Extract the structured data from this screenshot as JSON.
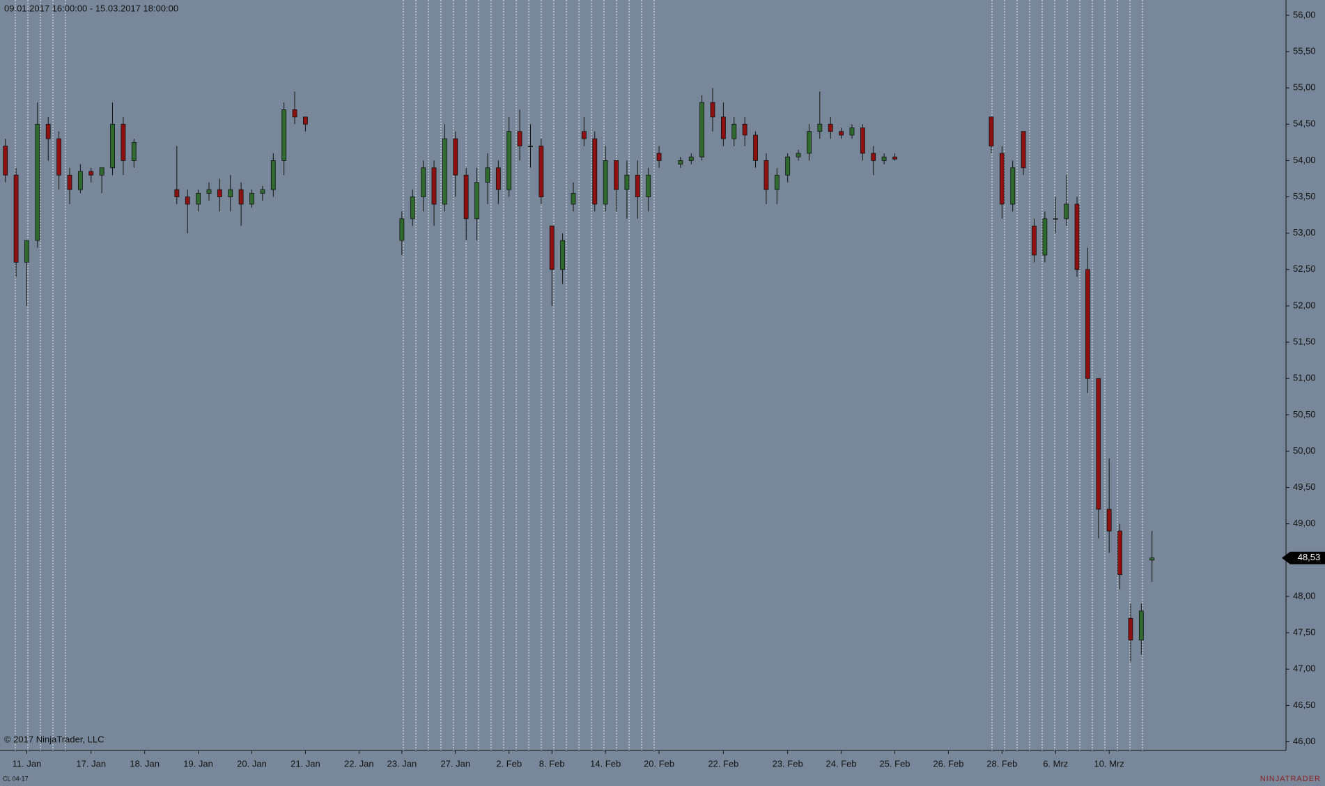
{
  "chart_data": {
    "type": "candlestick",
    "subtitle": "09.01.2017 16:00:00 - 15.03.2017 18:00:00",
    "copyright": "© 2017 NinjaTrader, LLC",
    "instrument": "CL 04-17",
    "brand": "NINJATRADER",
    "up_color": "#2f6b2f",
    "down_color": "#8e1010",
    "background": "#78889a",
    "ylim": [
      45.88,
      56.21
    ],
    "yticks": [
      {
        "value": 46,
        "label": "46,00"
      },
      {
        "value": 46.5,
        "label": "46,50"
      },
      {
        "value": 47,
        "label": "47,00"
      },
      {
        "value": 47.5,
        "label": "47,50"
      },
      {
        "value": 48,
        "label": "48,00"
      },
      {
        "value": 48.5,
        "label": "48,50"
      },
      {
        "value": 49,
        "label": "49,00"
      },
      {
        "value": 49.5,
        "label": "49,50"
      },
      {
        "value": 50,
        "label": "50,00"
      },
      {
        "value": 50.5,
        "label": "50,50"
      },
      {
        "value": 51,
        "label": "51,00"
      },
      {
        "value": 51.5,
        "label": "51,50"
      },
      {
        "value": 52,
        "label": "52,00"
      },
      {
        "value": 52.5,
        "label": "52,50"
      },
      {
        "value": 53,
        "label": "53,00"
      },
      {
        "value": 53.5,
        "label": "53,50"
      },
      {
        "value": 54,
        "label": "54,00"
      },
      {
        "value": 54.5,
        "label": "54,50"
      },
      {
        "value": 55,
        "label": "55,00"
      },
      {
        "value": 55.5,
        "label": "55,50"
      },
      {
        "value": 56,
        "label": "56,00"
      }
    ],
    "last_price": {
      "value": 48.53,
      "label": "48,53"
    },
    "categories": [
      null,
      null,
      "11. Jan",
      null,
      null,
      null,
      null,
      null,
      "17. Jan",
      null,
      null,
      null,
      null,
      "18. Jan",
      null,
      null,
      null,
      null,
      "19. Jan",
      null,
      null,
      null,
      null,
      "20. Jan",
      null,
      null,
      null,
      null,
      "21. Jan",
      null,
      null,
      null,
      null,
      "22. Jan",
      null,
      null,
      null,
      "23. Jan",
      null,
      null,
      null,
      null,
      "27. Jan",
      null,
      null,
      null,
      null,
      "2. Feb",
      null,
      null,
      null,
      "8. Feb",
      null,
      null,
      null,
      null,
      "14. Feb",
      null,
      null,
      null,
      null,
      "20. Feb",
      null,
      null,
      null,
      null,
      null,
      "22. Feb",
      null,
      null,
      null,
      null,
      null,
      "23. Feb",
      null,
      null,
      null,
      null,
      "24. Feb",
      null,
      null,
      null,
      null,
      "25. Feb",
      null,
      null,
      null,
      null,
      "26. Feb",
      null,
      null,
      null,
      null,
      "28. Feb",
      null,
      null,
      null,
      null,
      "6. Mrz",
      null,
      null,
      null,
      null,
      "10. Mrz",
      null,
      null,
      null,
      null,
      null,
      null,
      null,
      null,
      null,
      null,
      null,
      null,
      null,
      null,
      null,
      null
    ],
    "open": [
      54.2,
      53.8,
      52.6,
      52.9,
      54.5,
      54.3,
      53.8,
      53.6,
      53.85,
      53.8,
      53.9,
      54.5,
      54.0,
      null,
      null,
      null,
      53.6,
      53.5,
      53.4,
      53.55,
      53.6,
      53.5,
      53.6,
      53.4,
      53.55,
      53.6,
      54.0,
      54.7,
      54.6,
      null,
      null,
      null,
      null,
      null,
      null,
      null,
      null,
      52.9,
      53.2,
      53.5,
      53.9,
      53.4,
      54.3,
      53.8,
      53.2,
      53.7,
      53.9,
      53.6,
      54.4,
      54.2,
      54.2,
      53.1,
      52.5,
      53.4,
      54.4,
      54.3,
      53.4,
      54.0,
      53.6,
      53.8,
      53.5,
      54.1,
      null,
      53.95,
      54.0,
      54.05,
      54.8,
      54.6,
      54.3,
      54.5,
      54.35,
      54.0,
      53.6,
      53.8,
      54.05,
      54.1,
      54.4,
      54.5,
      54.4,
      54.35,
      54.45,
      54.1,
      54.0,
      54.05,
      null,
      null,
      null,
      null,
      null,
      null,
      null,
      null,
      54.6,
      54.1,
      53.4,
      54.4,
      53.1,
      52.7,
      53.2,
      53.2,
      53.4,
      52.5,
      51.0,
      49.2,
      48.9,
      47.7,
      47.4,
      48.5,
      null,
      null,
      null,
      null,
      null,
      null,
      null,
      null,
      null,
      null,
      null,
      null
    ],
    "high": [
      54.3,
      53.9,
      52.9,
      54.8,
      54.6,
      54.4,
      53.9,
      53.95,
      53.9,
      53.9,
      54.8,
      54.6,
      54.3,
      null,
      null,
      null,
      54.2,
      53.6,
      53.6,
      53.7,
      53.75,
      53.8,
      53.7,
      53.6,
      53.65,
      54.1,
      54.8,
      54.95,
      54.6,
      null,
      null,
      null,
      null,
      null,
      null,
      null,
      null,
      53.3,
      53.6,
      54.0,
      54.0,
      54.5,
      54.4,
      53.9,
      53.9,
      54.1,
      54.0,
      54.6,
      54.7,
      54.5,
      54.3,
      53.1,
      53.0,
      53.7,
      54.6,
      54.4,
      54.2,
      54.0,
      54.0,
      54.0,
      53.9,
      54.2,
      null,
      54.05,
      54.1,
      54.9,
      55.0,
      54.8,
      54.6,
      54.6,
      54.4,
      54.1,
      53.9,
      54.1,
      54.15,
      54.5,
      54.95,
      54.6,
      54.45,
      54.5,
      54.5,
      54.2,
      54.1,
      54.1,
      null,
      null,
      null,
      null,
      null,
      null,
      null,
      null,
      54.6,
      54.2,
      54.0,
      54.4,
      53.2,
      53.3,
      53.5,
      53.8,
      53.5,
      52.8,
      51.0,
      49.9,
      49.0,
      47.9,
      47.9,
      48.9,
      null,
      null,
      null,
      null,
      null,
      null,
      null,
      null,
      null,
      null,
      null,
      null
    ],
    "low": [
      53.7,
      52.4,
      52.0,
      52.8,
      54.0,
      53.6,
      53.4,
      53.55,
      53.7,
      53.55,
      53.8,
      53.8,
      53.9,
      null,
      null,
      null,
      53.4,
      53.0,
      53.3,
      53.45,
      53.3,
      53.3,
      53.1,
      53.35,
      53.45,
      53.5,
      53.8,
      54.5,
      54.4,
      null,
      null,
      null,
      null,
      null,
      null,
      null,
      null,
      52.7,
      53.1,
      53.3,
      53.1,
      53.3,
      53.5,
      52.9,
      52.9,
      53.4,
      53.4,
      53.5,
      54.0,
      53.9,
      53.4,
      52.0,
      52.3,
      53.3,
      54.2,
      53.3,
      53.3,
      53.3,
      53.2,
      53.2,
      53.3,
      53.9,
      null,
      53.9,
      53.95,
      54.0,
      54.4,
      54.2,
      54.2,
      54.2,
      53.9,
      53.4,
      53.4,
      53.7,
      54.0,
      54.0,
      54.3,
      54.3,
      54.3,
      54.3,
      54.0,
      53.8,
      53.95,
      54.0,
      null,
      null,
      null,
      null,
      null,
      null,
      null,
      null,
      54.1,
      53.2,
      53.3,
      53.8,
      52.6,
      52.6,
      53.0,
      53.1,
      52.4,
      50.8,
      48.8,
      48.6,
      48.1,
      47.1,
      47.2,
      48.2,
      null,
      null,
      null,
      null,
      null,
      null,
      null,
      null,
      null,
      null,
      null,
      null
    ],
    "close": [
      53.8,
      52.6,
      52.9,
      54.5,
      54.3,
      53.8,
      53.6,
      53.85,
      53.8,
      53.9,
      54.5,
      54.0,
      54.25,
      null,
      null,
      null,
      53.5,
      53.4,
      53.55,
      53.6,
      53.5,
      53.6,
      53.4,
      53.55,
      53.6,
      54.0,
      54.7,
      54.6,
      54.5,
      null,
      null,
      null,
      null,
      null,
      null,
      null,
      null,
      53.2,
      53.5,
      53.9,
      53.4,
      54.3,
      53.8,
      53.2,
      53.7,
      53.9,
      53.6,
      54.4,
      54.2,
      54.2,
      53.5,
      52.5,
      52.9,
      53.55,
      54.3,
      53.4,
      54.0,
      53.6,
      53.8,
      53.5,
      53.8,
      54.0,
      null,
      54.0,
      54.05,
      54.8,
      54.6,
      54.3,
      54.5,
      54.35,
      54.0,
      53.6,
      53.8,
      54.05,
      54.1,
      54.4,
      54.5,
      54.4,
      54.35,
      54.45,
      54.1,
      54.0,
      54.05,
      54.02,
      null,
      null,
      null,
      null,
      null,
      null,
      null,
      null,
      54.2,
      53.4,
      53.9,
      53.9,
      52.7,
      53.2,
      53.2,
      53.4,
      52.5,
      51.0,
      49.2,
      48.9,
      48.3,
      47.4,
      47.8,
      48.53,
      null,
      null,
      null,
      null,
      null,
      null,
      null,
      null,
      null,
      null,
      null,
      null
    ]
  }
}
